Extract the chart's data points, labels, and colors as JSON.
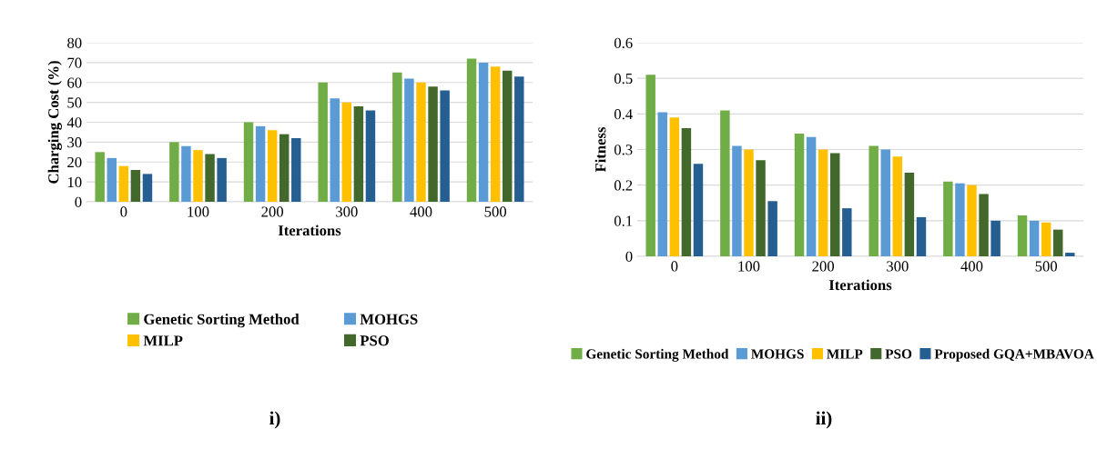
{
  "chart_data": [
    {
      "type": "bar",
      "xlabel": "Iterations",
      "ylabel": "Charging Cost (%)",
      "categories": [
        "0",
        "100",
        "200",
        "300",
        "400",
        "500"
      ],
      "ylim": [
        0,
        80
      ],
      "yticks": [
        0,
        10,
        20,
        30,
        40,
        50,
        60,
        70,
        80
      ],
      "grid": "y",
      "legend": "bottom",
      "annotations": [
        "i)"
      ],
      "series": [
        {
          "name": "Genetic Sorting Method",
          "color": "#70ad47",
          "values": [
            25,
            30,
            40,
            60,
            65,
            72
          ]
        },
        {
          "name": "MOHGS",
          "color": "#5b9bd5",
          "values": [
            22,
            28,
            38,
            52,
            62,
            70
          ]
        },
        {
          "name": "MILP",
          "color": "#ffc000",
          "values": [
            18,
            26,
            36,
            50,
            60,
            68
          ]
        },
        {
          "name": "PSO",
          "color": "#43682b",
          "values": [
            16,
            24,
            34,
            48,
            58,
            66
          ]
        },
        {
          "color": "#255e91",
          "values": [
            14,
            22,
            32,
            46,
            56,
            63
          ]
        }
      ]
    },
    {
      "type": "bar",
      "xlabel": "Iterations",
      "ylabel": "Fitness",
      "categories": [
        "0",
        "100",
        "200",
        "300",
        "400",
        "500"
      ],
      "ylim": [
        0,
        0.6
      ],
      "yticks": [
        {
          "value": 0,
          "label": "0"
        },
        0.1,
        0.2,
        0.3,
        0.4,
        0.5,
        0.6
      ],
      "grid": "y",
      "legend": "bottom",
      "annotations": [
        "ii)"
      ],
      "series": [
        {
          "name": "Genetic Sorting Method",
          "color": "#70ad47",
          "values": [
            0.51,
            0.41,
            0.345,
            0.31,
            0.21,
            0.115
          ]
        },
        {
          "name": "MOHGS",
          "color": "#5b9bd5",
          "values": [
            0.405,
            0.31,
            0.335,
            0.3,
            0.205,
            0.1
          ]
        },
        {
          "name": "MILP",
          "color": "#ffc000",
          "values": [
            0.39,
            0.3,
            0.3,
            0.28,
            0.2,
            0.095
          ]
        },
        {
          "name": "PSO",
          "color": "#43682b",
          "values": [
            0.36,
            0.27,
            0.29,
            0.235,
            0.175,
            0.075
          ]
        },
        {
          "name": "Proposed GQA+MBAVOA",
          "color": "#255e91",
          "values": [
            0.26,
            0.155,
            0.135,
            0.11,
            0.1,
            0.01
          ]
        }
      ]
    }
  ]
}
